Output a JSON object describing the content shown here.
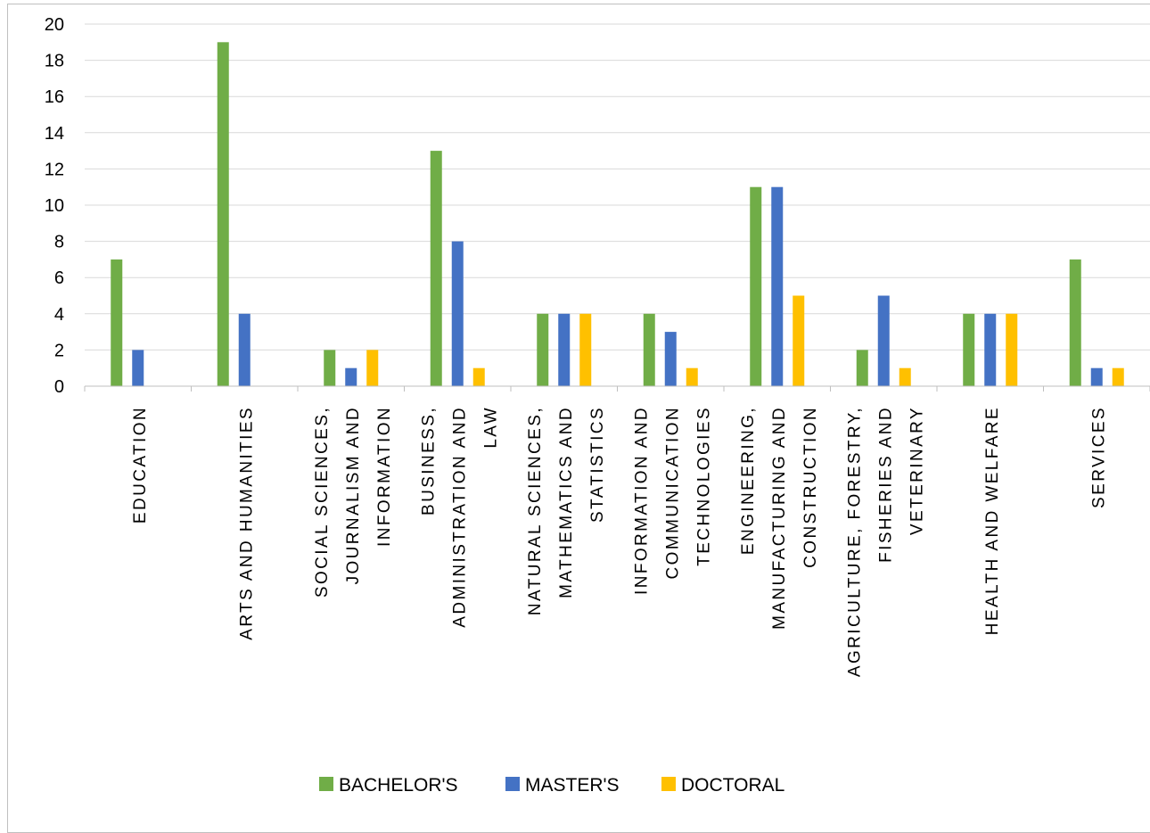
{
  "chart_data": {
    "type": "bar",
    "categories": [
      [
        "EDUCATION"
      ],
      [
        "ARTS AND HUMANITIES"
      ],
      [
        "SOCIAL SCIENCES,",
        "JOURNALISM AND",
        "INFORMATION"
      ],
      [
        "BUSINESS,",
        "ADMINISTRATION AND",
        "LAW"
      ],
      [
        "NATURAL SCIENCES,",
        "MATHEMATICS AND",
        "STATISTICS"
      ],
      [
        "INFORMATION AND",
        "COMMUNICATION",
        "TECHNOLOGIES"
      ],
      [
        "ENGINEERING,",
        "MANUFACTURING AND",
        "CONSTRUCTION"
      ],
      [
        "AGRICULTURE, FORESTRY,",
        "FISHERIES AND",
        "VETERINARY"
      ],
      [
        "HEALTH AND WELFARE"
      ],
      [
        "SERVICES"
      ]
    ],
    "series": [
      {
        "name": "BACHELOR'S",
        "color": "#70ad47",
        "values": [
          7,
          19,
          2,
          13,
          4,
          4,
          11,
          2,
          4,
          7
        ]
      },
      {
        "name": "MASTER'S",
        "color": "#4472c4",
        "values": [
          2,
          4,
          1,
          8,
          4,
          3,
          11,
          5,
          4,
          1
        ]
      },
      {
        "name": "DOCTORAL",
        "color": "#ffc000",
        "values": [
          0,
          0,
          2,
          1,
          4,
          1,
          5,
          1,
          4,
          1
        ]
      }
    ],
    "ylim": [
      0,
      20
    ],
    "yticks": [
      0,
      2,
      4,
      6,
      8,
      10,
      12,
      14,
      16,
      18,
      20
    ],
    "grid": true,
    "legend_position": "bottom"
  }
}
